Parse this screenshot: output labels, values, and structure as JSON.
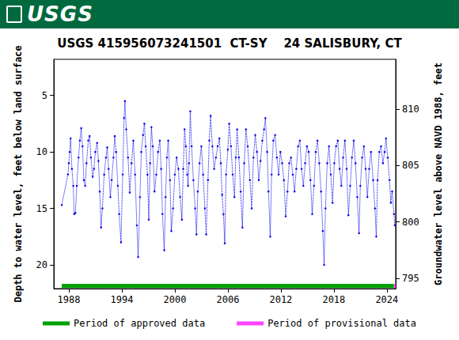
{
  "banner": {
    "text": "USGS"
  },
  "chart_data": {
    "type": "line",
    "title": "USGS 415956073241501  CT-SY    24 SALISBURY, CT",
    "y_label": "Depth to water level, feet below land surface",
    "y2_label": "Groundwater level above NAVD 1988, feet",
    "xlim": [
      1986.3,
      2025.0
    ],
    "xticks": [
      1988,
      1994,
      2000,
      2006,
      2012,
      2018,
      2024
    ],
    "ylim": [
      22.1,
      1.8
    ],
    "yticks": [
      5,
      10,
      15,
      20
    ],
    "y2lim": [
      794.1,
      814.4
    ],
    "y2ticks": [
      795,
      800,
      805,
      810
    ],
    "grid": false,
    "legend": "bottom",
    "series": [
      {
        "color": "#0000ee",
        "marker": "circle",
        "line_style": "dotted",
        "x": [
          1987.2,
          1987.9,
          1988.0,
          1988.1,
          1988.2,
          1988.35,
          1988.5,
          1988.6,
          1988.75,
          1988.9,
          1989.1,
          1989.25,
          1989.4,
          1989.55,
          1989.7,
          1989.85,
          1990.0,
          1990.2,
          1990.35,
          1990.5,
          1990.7,
          1990.85,
          1991.0,
          1991.2,
          1991.35,
          1991.5,
          1991.65,
          1991.8,
          1992.0,
          1992.2,
          1992.35,
          1992.5,
          1992.7,
          1992.85,
          1993.05,
          1993.2,
          1993.35,
          1993.55,
          1993.7,
          1993.9,
          1994.1,
          1994.25,
          1994.35,
          1994.5,
          1994.7,
          1994.9,
          1995.1,
          1995.3,
          1995.5,
          1995.7,
          1995.85,
          1996.05,
          1996.2,
          1996.4,
          1996.55,
          1996.7,
          1996.9,
          1997.05,
          1997.2,
          1997.35,
          1997.5,
          1997.7,
          1997.9,
          1998.1,
          1998.3,
          1998.45,
          1998.6,
          1998.8,
          1998.95,
          1999.1,
          1999.25,
          1999.45,
          1999.6,
          1999.8,
          2000.0,
          2000.2,
          2000.4,
          2000.6,
          2000.8,
          2000.95,
          2001.1,
          2001.25,
          2001.4,
          2001.5,
          2001.6,
          2001.75,
          2001.9,
          2002.1,
          2002.3,
          2002.45,
          2002.6,
          2002.8,
          2003.0,
          2003.2,
          2003.4,
          2003.55,
          2003.75,
          2003.9,
          2004.05,
          2004.25,
          2004.45,
          2004.65,
          2004.85,
          2005.05,
          2005.2,
          2005.35,
          2005.5,
          2005.65,
          2005.8,
          2006.0,
          2006.15,
          2006.35,
          2006.55,
          2006.75,
          2006.9,
          2007.05,
          2007.25,
          2007.45,
          2007.65,
          2007.85,
          2008.05,
          2008.25,
          2008.5,
          2008.7,
          2008.9,
          2009.1,
          2009.3,
          2009.5,
          2009.7,
          2009.9,
          2010.1,
          2010.25,
          2010.45,
          2010.6,
          2010.8,
          2010.95,
          2011.15,
          2011.35,
          2011.55,
          2011.75,
          2011.95,
          2012.15,
          2012.35,
          2012.55,
          2012.75,
          2012.95,
          2013.15,
          2013.35,
          2013.55,
          2013.75,
          2013.95,
          2014.15,
          2014.35,
          2014.55,
          2014.75,
          2014.95,
          2015.15,
          2015.35,
          2015.55,
          2015.75,
          2015.95,
          2016.15,
          2016.35,
          2016.55,
          2016.75,
          2016.9,
          2017.05,
          2017.25,
          2017.45,
          2017.65,
          2017.85,
          2018.05,
          2018.25,
          2018.45,
          2018.65,
          2018.85,
          2019.05,
          2019.25,
          2019.45,
          2019.65,
          2019.85,
          2020.05,
          2020.25,
          2020.45,
          2020.65,
          2020.85,
          2021.0,
          2021.2,
          2021.4,
          2021.6,
          2021.8,
          2022.0,
          2022.2,
          2022.45,
          2022.65,
          2022.8,
          2022.95,
          2023.15,
          2023.35,
          2023.55,
          2023.75,
          2023.9,
          2024.1,
          2024.3,
          2024.45,
          2024.6,
          2024.8,
          2024.9
        ],
        "values": [
          14.7,
          12.0,
          11.0,
          10.0,
          8.8,
          11.5,
          13.0,
          15.5,
          15.4,
          13.0,
          10.5,
          9.0,
          7.9,
          9.5,
          12.5,
          13.0,
          11.0,
          9.0,
          8.6,
          10.5,
          12.2,
          11.5,
          10.0,
          9.2,
          10.8,
          13.5,
          16.7,
          15.0,
          12.0,
          10.5,
          9.6,
          11.5,
          14.0,
          12.5,
          10.5,
          8.6,
          10.0,
          13.0,
          15.5,
          18.0,
          12.0,
          7.0,
          5.5,
          8.0,
          10.5,
          13.6,
          11.0,
          9.0,
          12.0,
          16.5,
          19.3,
          14.0,
          10.0,
          8.5,
          7.5,
          9.5,
          12.0,
          16.0,
          11.0,
          7.8,
          9.5,
          13.5,
          12.0,
          10.0,
          9.0,
          11.5,
          15.5,
          18.7,
          14.0,
          10.5,
          9.0,
          12.5,
          17.0,
          15.0,
          12.0,
          10.5,
          11.5,
          14.0,
          16.0,
          11.5,
          8.0,
          9.5,
          12.0,
          13.0,
          11.0,
          6.4,
          9.5,
          12.5,
          15.0,
          17.3,
          13.5,
          11.0,
          9.5,
          12.0,
          15.0,
          17.3,
          12.5,
          9.0,
          6.8,
          9.5,
          11.5,
          10.5,
          9.5,
          8.8,
          11.0,
          13.8,
          15.5,
          18.1,
          12.0,
          9.8,
          7.5,
          9.5,
          12.0,
          14.0,
          10.5,
          8.0,
          10.5,
          13.5,
          16.7,
          11.0,
          8.0,
          9.5,
          12.5,
          15.0,
          10.5,
          8.5,
          10.0,
          12.5,
          10.8,
          9.0,
          8.0,
          7.0,
          10.0,
          13.5,
          17.5,
          12.0,
          9.0,
          8.5,
          10.5,
          12.0,
          10.0,
          11.0,
          12.5,
          15.7,
          13.5,
          11.0,
          10.5,
          12.0,
          13.5,
          11.5,
          9.5,
          9.0,
          11.5,
          13.0,
          11.0,
          9.5,
          10.0,
          12.5,
          15.5,
          13.0,
          10.0,
          9.0,
          11.0,
          13.5,
          17.0,
          20.0,
          15.0,
          11.0,
          9.5,
          12.0,
          14.5,
          11.0,
          9.5,
          9.0,
          11.5,
          13.0,
          10.5,
          9.0,
          11.5,
          15.6,
          13.0,
          10.5,
          9.0,
          11.0,
          14.0,
          17.2,
          13.0,
          10.5,
          9.5,
          11.5,
          14.0,
          11.5,
          10.0,
          12.5,
          15.0,
          17.5,
          12.5,
          10.0,
          9.5,
          11.0,
          10.0,
          8.8,
          10.5,
          12.5,
          14.5,
          13.5,
          15.5,
          16.5
        ]
      },
      {
        "name": "Period of approved data",
        "color": "#00a000",
        "line_style": "solid",
        "x": [
          1987.2,
          2024.8
        ],
        "values": [
          21.85,
          21.85
        ]
      },
      {
        "name": "Period of provisional data",
        "color": "#ff44ff",
        "line_style": "solid",
        "x": [
          2024.8,
          2025.0
        ],
        "values": [
          21.85,
          21.85
        ]
      }
    ]
  }
}
